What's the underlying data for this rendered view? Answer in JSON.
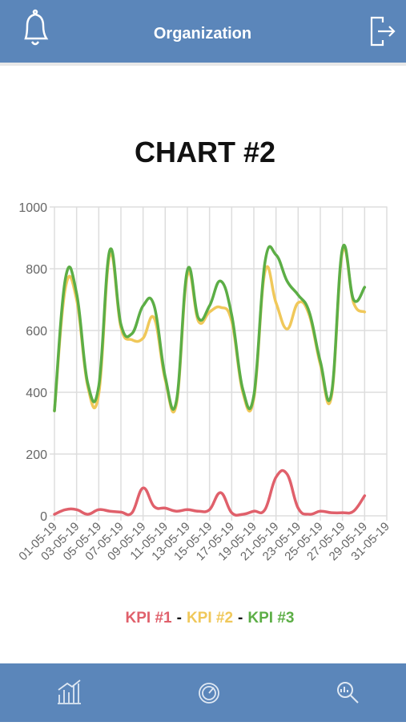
{
  "header": {
    "title": "Organization"
  },
  "chart_data": {
    "type": "line",
    "title": "CHART #2",
    "categories": [
      "01-05-19",
      null,
      "03-05-19",
      null,
      "05-05-19",
      null,
      "07-05-19",
      null,
      "09-05-19",
      null,
      "11-05-19",
      null,
      "13-05-19",
      null,
      "15-05-19",
      null,
      "17-05-19",
      null,
      "19-05-19",
      null,
      "21-05-19",
      null,
      "23-05-19",
      null,
      "25-05-19",
      null,
      "27-05-19",
      null,
      "29-05-19",
      null,
      "31-05-19"
    ],
    "series": [
      {
        "name": "KPI #1",
        "color": "#e0606b",
        "values": [
          5,
          20,
          20,
          5,
          20,
          15,
          12,
          10,
          90,
          30,
          25,
          15,
          20,
          15,
          20,
          75,
          10,
          5,
          15,
          20,
          125,
          135,
          25,
          5,
          15,
          10,
          10,
          15,
          65,
          null,
          null
        ]
      },
      {
        "name": "KPI #2",
        "color": "#f0c85a",
        "values": [
          340,
          740,
          700,
          420,
          395,
          845,
          610,
          570,
          575,
          640,
          440,
          360,
          780,
          630,
          660,
          675,
          630,
          400,
          380,
          790,
          690,
          605,
          690,
          650,
          490,
          385,
          855,
          690,
          660,
          null,
          null
        ]
      },
      {
        "name": "KPI #3",
        "color": "#5cae46",
        "values": [
          340,
          770,
          720,
          430,
          420,
          860,
          620,
          590,
          680,
          680,
          450,
          370,
          795,
          640,
          680,
          760,
          650,
          410,
          390,
          820,
          845,
          760,
          715,
          660,
          500,
          395,
          865,
          700,
          740,
          null,
          null
        ]
      }
    ],
    "legend_separator": "-",
    "ylim": [
      0,
      1000
    ],
    "yticks": [
      0,
      200,
      400,
      600,
      800,
      1000
    ],
    "grid": true
  }
}
